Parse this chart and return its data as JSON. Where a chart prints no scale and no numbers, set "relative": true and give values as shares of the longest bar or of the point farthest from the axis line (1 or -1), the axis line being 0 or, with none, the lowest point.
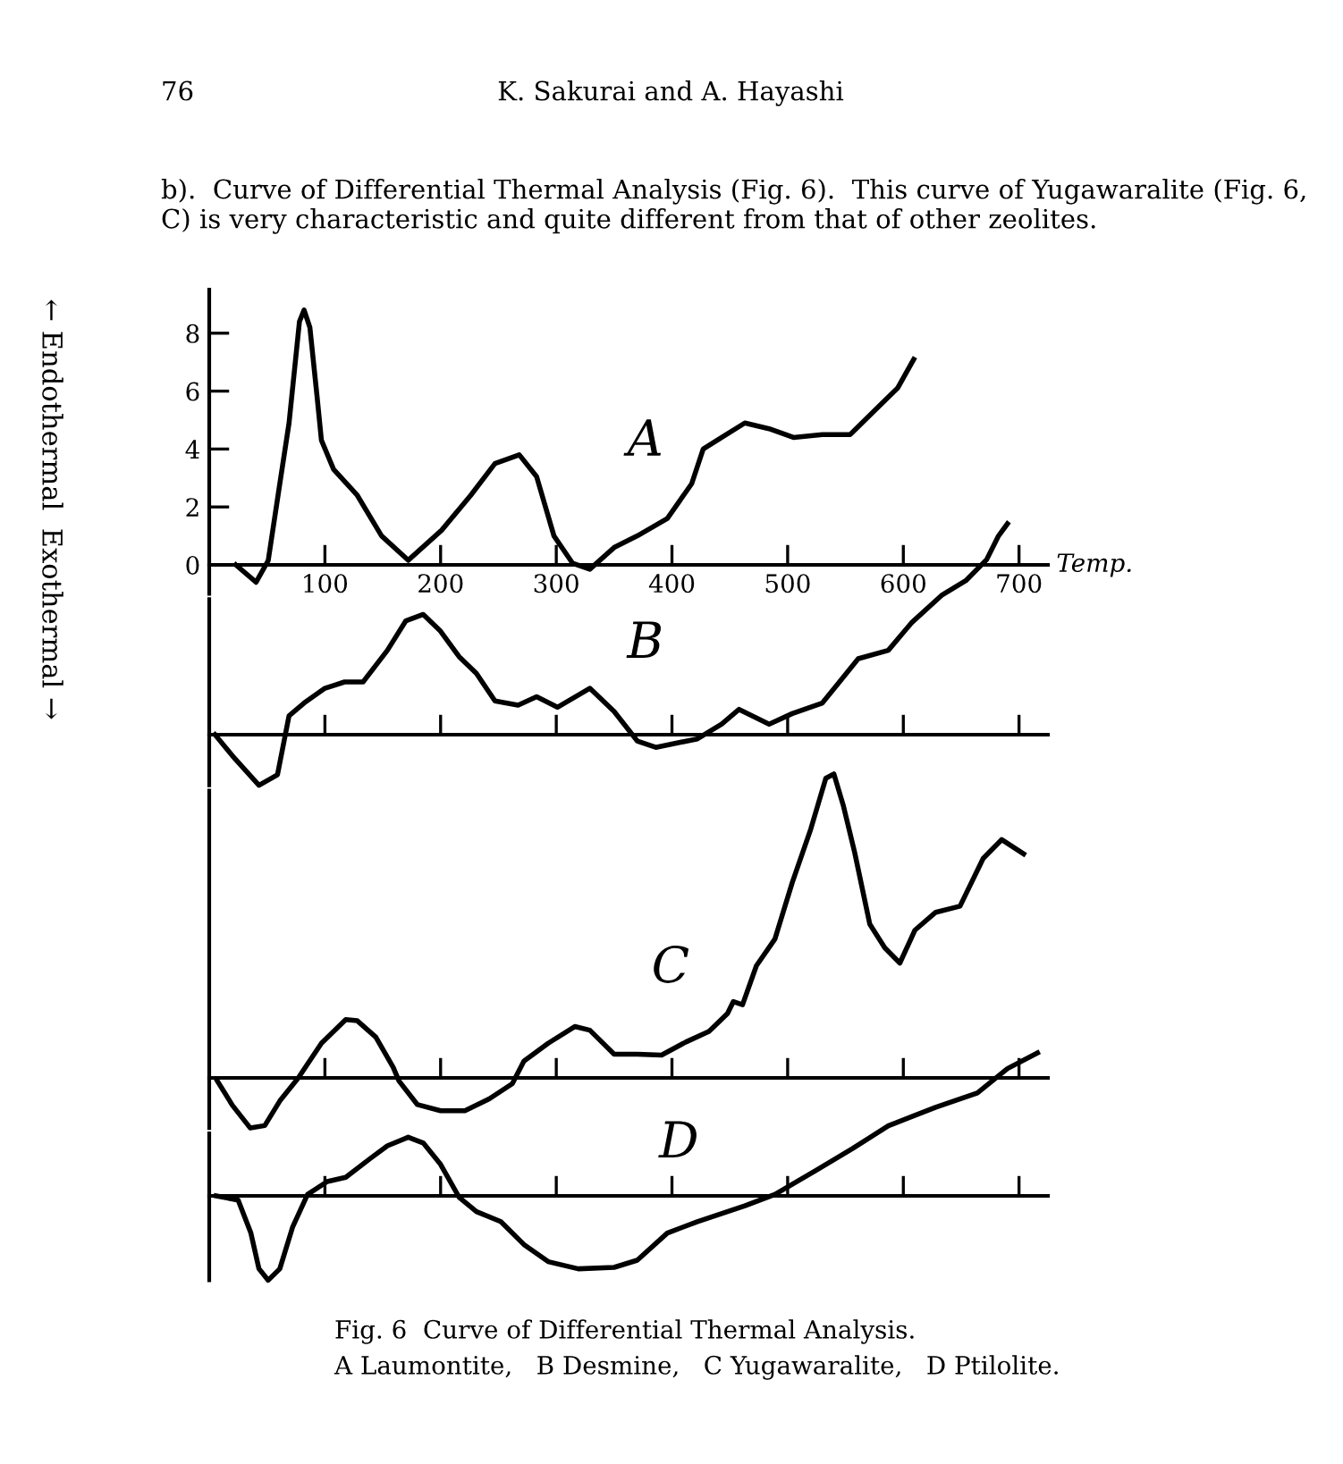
{
  "chart_data": [
    {
      "type": "line",
      "xlabel": "Temp.",
      "ylabel": "← Endothermal  Exothermal →",
      "annotations": [
        "76",
        "K. Sakurai and A. Hayashi",
        "b).  Curve of Differential Thermal Analysis (Fig. 6).  This curve of Yugawaralite (Fig. 6, C) is very characteristic and quite different from that of other zeolites."
      ],
      "x": [
        23,
        40.5,
        51,
        61,
        69,
        78,
        82,
        87,
        93,
        97,
        107.5,
        128,
        149,
        172,
        201,
        226,
        247,
        268,
        283,
        298,
        314,
        329,
        350,
        370,
        396,
        417,
        427,
        443,
        463,
        484,
        505,
        530,
        554,
        577,
        595,
        609
      ],
      "series": [
        {
          "name": "A",
          "color": "#000000",
          "values": [
            0,
            -0.6,
            0.15,
            2.8,
            4.9,
            8.4,
            8.8,
            8.2,
            5.9,
            4.3,
            3.3,
            2.4,
            1.0,
            0.16,
            1.2,
            2.4,
            3.5,
            3.8,
            3.05,
            1.0,
            0.06,
            -0.15,
            0.6,
            1.0,
            1.6,
            2.8,
            4.0,
            4.4,
            4.9,
            4.7,
            4.4,
            4.5,
            4.5,
            5.4,
            6.1,
            7.1
          ]
        }
      ],
      "xlim": [
        0,
        725
      ],
      "xticks": [
        100,
        200,
        300,
        400,
        500,
        600,
        700
      ],
      "ylim": [
        -1,
        9.5
      ],
      "yticks": [
        0,
        2,
        4,
        6,
        8
      ]
    },
    {
      "type": "line",
      "relative": true,
      "tick_labels": false,
      "x": [
        5,
        20,
        43,
        59,
        69,
        82,
        100,
        117,
        133,
        154,
        170,
        185,
        200,
        216,
        231,
        247,
        267,
        283,
        301,
        329,
        350,
        370,
        386,
        422,
        443,
        458,
        484,
        504,
        530,
        561,
        587,
        607,
        633,
        654,
        672,
        682,
        690
      ],
      "series": [
        {
          "name": "B",
          "color": "#000000",
          "values": [
            0,
            -0.1,
            -0.24,
            -0.19,
            0.09,
            0.15,
            0.22,
            0.25,
            0.25,
            0.4,
            0.54,
            0.57,
            0.49,
            0.37,
            0.29,
            0.16,
            0.14,
            0.18,
            0.13,
            0.22,
            0.11,
            -0.03,
            -0.06,
            -0.02,
            0.05,
            0.12,
            0.05,
            0.1,
            0.15,
            0.36,
            0.4,
            0.53,
            0.66,
            0.73,
            0.83,
            0.94,
            1.0
          ]
        }
      ],
      "xlim": [
        0,
        725
      ],
      "xticks": [
        100,
        200,
        300,
        400,
        500,
        600,
        700
      ]
    },
    {
      "type": "line",
      "relative": true,
      "tick_labels": false,
      "x": [
        7,
        20,
        35.5,
        48,
        61,
        77,
        97,
        118,
        128,
        144,
        159,
        164,
        180,
        200,
        221,
        242,
        262,
        272,
        293,
        316,
        329,
        350,
        370,
        391,
        412,
        432,
        448,
        453,
        461,
        473,
        489,
        504,
        520,
        533,
        540,
        548,
        558,
        571,
        584,
        597,
        610,
        628,
        649,
        669,
        685,
        704
      ],
      "series": [
        {
          "name": "C",
          "color": "#000000",
          "values": [
            -0.01,
            -0.09,
            -0.165,
            -0.157,
            -0.076,
            0,
            0.114,
            0.192,
            0.188,
            0.134,
            0.035,
            -0.01,
            -0.088,
            -0.108,
            -0.108,
            -0.069,
            -0.019,
            0.055,
            0.114,
            0.169,
            0.157,
            0.078,
            0.078,
            0.075,
            0.118,
            0.153,
            0.212,
            0.251,
            0.241,
            0.369,
            0.457,
            0.643,
            0.819,
            0.986,
            1.0,
            0.898,
            0.741,
            0.506,
            0.428,
            0.378,
            0.486,
            0.545,
            0.565,
            0.722,
            0.784,
            0.737
          ]
        }
      ],
      "xlim": [
        0,
        725
      ],
      "xticks": [
        100,
        200,
        300,
        400,
        500,
        600,
        700
      ]
    },
    {
      "type": "line",
      "relative": true,
      "tick_labels": false,
      "title": "Fig. 6  Curve of Differential Thermal Analysis.",
      "subtitle": "A Laumontite,   B Desmine,   C Yugawaralite,   D Ptilolite.",
      "x": [
        6,
        25,
        36,
        43,
        51,
        61,
        72,
        85,
        102,
        118,
        139,
        154,
        172,
        185,
        200,
        216,
        231,
        252,
        272,
        293,
        319,
        350,
        370,
        396,
        422,
        463,
        489,
        525,
        556,
        587,
        628,
        664,
        690,
        716
      ],
      "series": [
        {
          "name": "D",
          "color": "#000000",
          "values": [
            0,
            -0.03,
            -0.26,
            -0.51,
            -0.59,
            -0.51,
            -0.22,
            0.01,
            0.1,
            0.13,
            0.26,
            0.35,
            0.41,
            0.37,
            0.22,
            -0.01,
            -0.11,
            -0.18,
            -0.34,
            -0.46,
            -0.51,
            -0.5,
            -0.45,
            -0.26,
            -0.18,
            -0.07,
            0.01,
            0.18,
            0.33,
            0.49,
            0.62,
            0.72,
            0.89,
            1.0
          ]
        }
      ],
      "xlim": [
        0,
        725
      ],
      "xticks": [
        100,
        200,
        300,
        400,
        500,
        600,
        700
      ]
    }
  ]
}
